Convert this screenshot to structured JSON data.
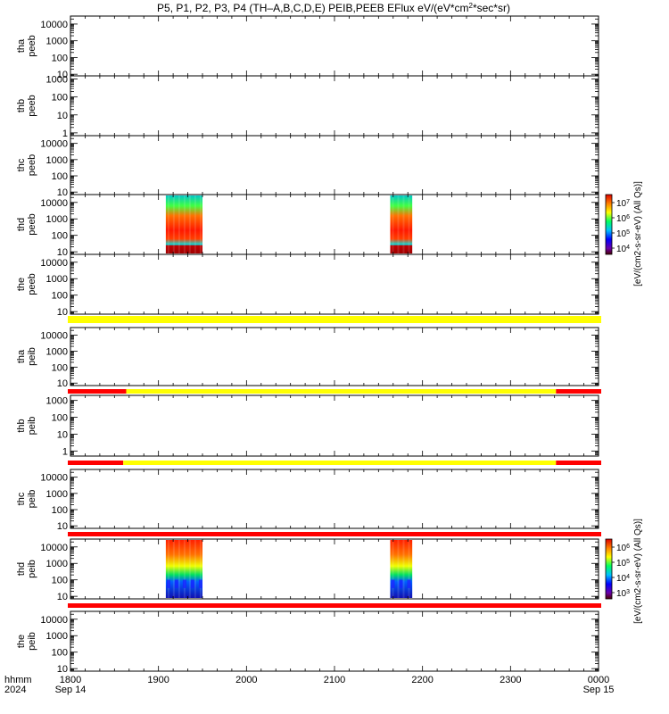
{
  "figure": {
    "title": "P5, P1, P2, P3, P4 (TH–A,B,C,D,E) PEIB,PEEB EFlux eV/(eV*cm^2*sec*sr)",
    "title_prefix": "P5, P1, P2, P3, P4 (TH–A,B,C,D,E) PEIB,PEEB EFlux eV/(eV*cm",
    "title_sup": "2",
    "title_suffix": "*sec*sr)",
    "time_axis": {
      "hhmm_label": "hhmm",
      "year_label": "2024",
      "ticks": [
        "1800",
        "1900",
        "2000",
        "2100",
        "2200",
        "2300",
        "0000"
      ],
      "start_date": "Sep 14",
      "end_date": "Sep 15"
    },
    "colorbars": [
      {
        "label": "[eV/(cm2-s-sr-eV) (All Qs)]",
        "tick_labels": [
          "10^7",
          "10^6",
          "10^5",
          "10^4"
        ]
      },
      {
        "label": "[eV/(cm2-s-sr-eV) (All Qs)]",
        "tick_labels": [
          "10^6",
          "10^5",
          "10^4",
          "10^3"
        ]
      }
    ]
  },
  "chart_data": {
    "type": "heatmap",
    "title": "P5, P1, P2, P3, P4 (TH–A,B,C,D,E) PEIB,PEEB EFlux eV/(eV*cm^2*sec*sr)",
    "x_range": [
      "1800",
      "0000"
    ],
    "x_unit": "hhmm",
    "y_scale": "log",
    "colors": {
      "flag_yellow": "#ffff00",
      "flag_red": "#ff0000"
    },
    "panels": [
      {
        "ylabel": [
          "tha",
          "peeb"
        ],
        "yticks": [
          "10000",
          "1000",
          "100",
          "10"
        ],
        "ylim": [
          8,
          30000
        ],
        "data_intervals": []
      },
      {
        "ylabel": [
          "thb",
          "peeb"
        ],
        "yticks": [
          "1000",
          "100",
          "10",
          "1"
        ],
        "ylim": [
          0.7,
          1500
        ],
        "data_intervals": []
      },
      {
        "ylabel": [
          "thc",
          "peeb"
        ],
        "yticks": [
          "10000",
          "1000",
          "100",
          "10"
        ],
        "ylim": [
          7,
          30000
        ],
        "data_intervals": []
      },
      {
        "ylabel": [
          "thd",
          "peeb"
        ],
        "yticks": [
          "10000",
          "1000",
          "100",
          "10"
        ],
        "ylim": [
          7,
          30000
        ],
        "data_intervals": [
          [
            "1905",
            "1930"
          ],
          [
            "2138",
            "2153"
          ]
        ]
      },
      {
        "ylabel": [
          "the",
          "peeb"
        ],
        "yticks": [
          "10000",
          "1000",
          "100",
          "10"
        ],
        "ylim": [
          7,
          30000
        ],
        "data_intervals": []
      },
      {
        "ylabel": [
          "tha",
          "peib"
        ],
        "yticks": [
          "10000",
          "1000",
          "100",
          "10"
        ],
        "ylim": [
          7,
          30000
        ],
        "data_intervals": []
      },
      {
        "ylabel": [
          "thb",
          "peib"
        ],
        "yticks": [
          "1000",
          "100",
          "10",
          "1"
        ],
        "ylim": [
          0.5,
          2000
        ],
        "data_intervals": []
      },
      {
        "ylabel": [
          "thc",
          "peib"
        ],
        "yticks": [
          "10000",
          "1000",
          "100",
          "10"
        ],
        "ylim": [
          7,
          30000
        ],
        "data_intervals": []
      },
      {
        "ylabel": [
          "thd",
          "peib"
        ],
        "yticks": [
          "10000",
          "1000",
          "100",
          "10"
        ],
        "ylim": [
          7,
          30000
        ],
        "data_intervals": [
          [
            "1905",
            "1930"
          ],
          [
            "2138",
            "2153"
          ]
        ]
      },
      {
        "ylabel": [
          "the",
          "peib"
        ],
        "yticks": [
          "10000",
          "1000",
          "100",
          "10"
        ],
        "ylim": [
          7,
          30000
        ],
        "data_intervals": []
      }
    ],
    "flag_bars": [
      {
        "after_panel": "the peeb",
        "segments": [
          {
            "from": "1800",
            "to": "0000",
            "color": "yellow"
          }
        ]
      },
      {
        "after_panel": "tha peib",
        "segments": [
          {
            "from": "1800",
            "to": "1838",
            "color": "red"
          },
          {
            "from": "1838",
            "to": "2331",
            "color": "yellow"
          },
          {
            "from": "2331",
            "to": "0000",
            "color": "red"
          }
        ]
      },
      {
        "after_panel": "thb peib",
        "segments": [
          {
            "from": "1800",
            "to": "1836",
            "color": "red"
          },
          {
            "from": "1836",
            "to": "2331",
            "color": "yellow"
          },
          {
            "from": "2331",
            "to": "0000",
            "color": "red"
          }
        ]
      },
      {
        "after_panel": "thc peib",
        "segments": [
          {
            "from": "1800",
            "to": "0000",
            "color": "red"
          }
        ]
      },
      {
        "after_panel": "thd peib",
        "segments": [
          {
            "from": "1800",
            "to": "0000",
            "color": "red"
          }
        ]
      }
    ]
  }
}
